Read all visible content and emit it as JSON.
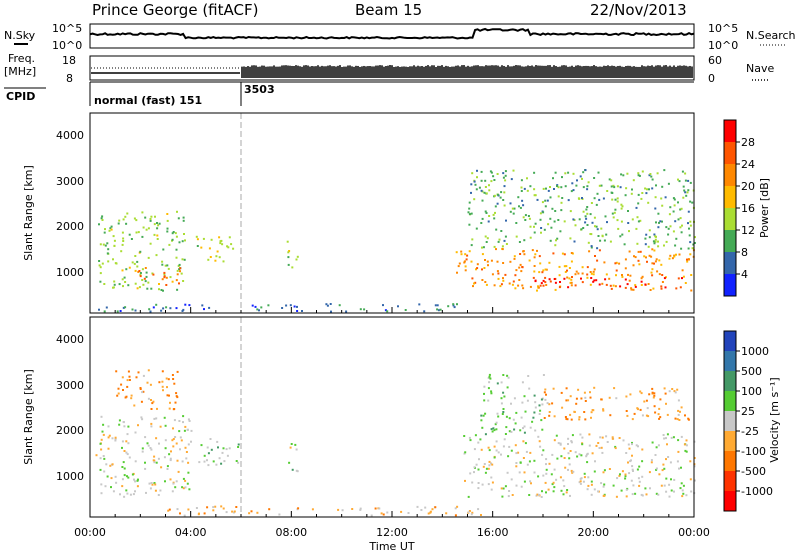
{
  "header": {
    "title": "Prince George (fitACF)",
    "beam": "Beam 15",
    "date": "22/Nov/2013"
  },
  "strip_labels": {
    "nsky": "N.Sky",
    "nsky_ticks": [
      "10^5",
      "10^0"
    ],
    "nsearch": "N.Search",
    "nsearch_ticks": [
      "10^5",
      "10^0"
    ],
    "freq": "Freq.",
    "freq_unit": "[MHz]",
    "freq_ticks": [
      "18",
      "8"
    ],
    "nave": "Nave",
    "nave_ticks": [
      "60",
      "0"
    ],
    "cpid": "CPID",
    "cpid_1": "normal (fast) 151",
    "cpid_2": "3503"
  },
  "colorbars": {
    "power": {
      "label": "Power [dB]",
      "ticks": [
        "28",
        "24",
        "20",
        "16",
        "12",
        "8",
        "4"
      ],
      "colors": [
        "#ff0000",
        "#ff5500",
        "#ff8800",
        "#ffbb00",
        "#aadd33",
        "#44aa55",
        "#3366aa",
        "#1122ff"
      ]
    },
    "velocity": {
      "label": "Velocity [m s⁻¹]",
      "ticks": [
        "1000",
        "500",
        "100",
        "25",
        "-25",
        "-100",
        "-500",
        "-1000"
      ],
      "colors": [
        "#2244bb",
        "#3377aa",
        "#449966",
        "#55cc33",
        "#c8c8c8",
        "#ffaa33",
        "#ff7700",
        "#ff3300",
        "#ff0000"
      ]
    }
  },
  "chart_data": [
    {
      "type": "heatmap",
      "panel": "power",
      "ylabel": "Slant Range [km]",
      "y_ticks": [
        "1000",
        "2000",
        "3000",
        "4000"
      ],
      "ylim": [
        200,
        4500
      ],
      "xlim": [
        "00:00",
        "24:00"
      ],
      "clim": [
        0,
        30
      ],
      "regions": [
        {
          "t0": 0.3,
          "t1": 3.8,
          "r0": 700,
          "r1": 2400,
          "v": 12
        },
        {
          "t0": 1.8,
          "t1": 3.6,
          "r0": 800,
          "r1": 1200,
          "v": 22
        },
        {
          "t0": 4.2,
          "t1": 5.8,
          "r0": 1300,
          "r1": 1900,
          "v": 14
        },
        {
          "t0": 7.8,
          "t1": 8.3,
          "r0": 1200,
          "r1": 1800,
          "v": 12
        },
        {
          "t0": 0.2,
          "t1": 15.0,
          "r0": 250,
          "r1": 420,
          "v": 6
        },
        {
          "t0": 14.5,
          "t1": 24.0,
          "r0": 700,
          "r1": 1600,
          "v": 20
        },
        {
          "t0": 17.5,
          "t1": 23.5,
          "r0": 750,
          "r1": 1000,
          "v": 28
        },
        {
          "t0": 15.0,
          "t1": 24.0,
          "r0": 1600,
          "r1": 3300,
          "v": 10
        }
      ]
    },
    {
      "type": "heatmap",
      "panel": "velocity",
      "ylabel": "Slant Range [km]",
      "y_ticks": [
        "1000",
        "2000",
        "3000",
        "4000"
      ],
      "ylim": [
        200,
        4500
      ],
      "xlim": [
        "00:00",
        "24:00"
      ],
      "x_ticks": [
        "00:00",
        "04:00",
        "08:00",
        "12:00",
        "16:00",
        "20:00",
        "00:00"
      ],
      "xlabel": "Time UT",
      "clim": [
        -1000,
        1000
      ],
      "regions": [
        {
          "t0": 0.2,
          "t1": 4.0,
          "r0": 650,
          "r1": 2400,
          "v": 0
        },
        {
          "t0": 1.0,
          "t1": 3.5,
          "r0": 2500,
          "r1": 3400,
          "v": -300
        },
        {
          "t0": 4.3,
          "t1": 6.0,
          "r0": 1300,
          "r1": 1900,
          "v": 150
        },
        {
          "t0": 7.8,
          "t1": 8.3,
          "r0": 1200,
          "r1": 1800,
          "v": 120
        },
        {
          "t0": 3.0,
          "t1": 15.5,
          "r0": 250,
          "r1": 450,
          "v": -150
        },
        {
          "t0": 14.8,
          "t1": 24.0,
          "r0": 650,
          "r1": 2000,
          "v": 0
        },
        {
          "t0": 18.0,
          "t1": 23.8,
          "r0": 2300,
          "r1": 3000,
          "v": -300
        },
        {
          "t0": 15.5,
          "t1": 18.0,
          "r0": 2000,
          "r1": 3300,
          "v": 150
        }
      ]
    }
  ]
}
